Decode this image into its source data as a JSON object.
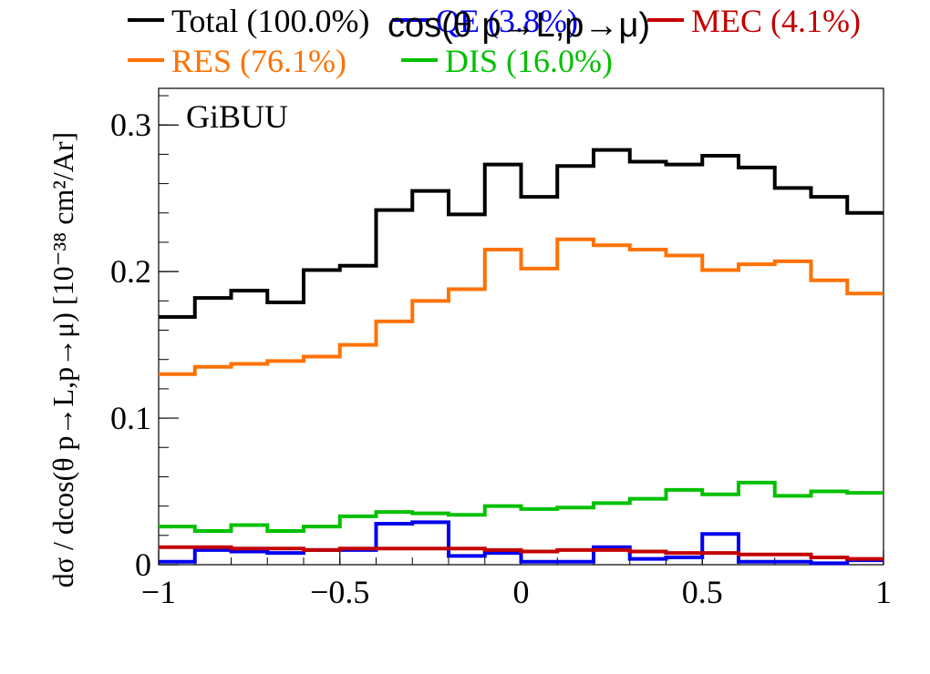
{
  "chart_data": {
    "type": "line",
    "step": true,
    "title": "cos(θ p→L,p→μ)",
    "annotation": "GiBUU",
    "xlabel": "",
    "ylabel": "dσ / dcos(θ p→L,p→μ) [10⁻³⁸ cm²/Ar]",
    "xlim": [
      -1,
      1
    ],
    "ylim": [
      0,
      0.325
    ],
    "xticks": [
      -1,
      -0.5,
      0,
      0.5,
      1
    ],
    "xtick_labels": [
      "−1",
      "−0.5",
      "0",
      "0.5",
      "1"
    ],
    "yticks": [
      0,
      0.1,
      0.2,
      0.3
    ],
    "ytick_labels": [
      "0",
      "0.1",
      "0.2",
      "0.3"
    ],
    "bin_edges": [
      -1,
      -0.9,
      -0.8,
      -0.7,
      -0.6,
      -0.5,
      -0.4,
      -0.3,
      -0.2,
      -0.1,
      0,
      0.1,
      0.2,
      0.3,
      0.4,
      0.5,
      0.6,
      0.7,
      0.8,
      0.9,
      1.0
    ],
    "legend_position": "top",
    "series": [
      {
        "name": "Total",
        "label": "Total (100.0%)",
        "color": "#000000",
        "values": [
          0.169,
          0.182,
          0.187,
          0.179,
          0.201,
          0.204,
          0.242,
          0.255,
          0.239,
          0.273,
          0.251,
          0.272,
          0.283,
          0.275,
          0.273,
          0.279,
          0.271,
          0.257,
          0.251,
          0.24
        ]
      },
      {
        "name": "QE",
        "label": "QE (3.8%)",
        "color": "#0000ee",
        "values": [
          0.002,
          0.01,
          0.009,
          0.008,
          0.01,
          0.01,
          0.028,
          0.029,
          0.006,
          0.008,
          0.002,
          0.002,
          0.012,
          0.004,
          0.005,
          0.021,
          0.002,
          0.002,
          0.001,
          0.003
        ]
      },
      {
        "name": "MEC",
        "label": "MEC (4.1%)",
        "color": "#c40000",
        "values": [
          0.012,
          0.012,
          0.011,
          0.011,
          0.01,
          0.011,
          0.011,
          0.011,
          0.011,
          0.01,
          0.009,
          0.01,
          0.01,
          0.009,
          0.008,
          0.008,
          0.007,
          0.007,
          0.005,
          0.004
        ]
      },
      {
        "name": "RES",
        "label": "RES (76.1%)",
        "color": "#ff7200",
        "values": [
          0.13,
          0.135,
          0.137,
          0.139,
          0.142,
          0.15,
          0.166,
          0.18,
          0.188,
          0.215,
          0.202,
          0.222,
          0.218,
          0.215,
          0.211,
          0.201,
          0.205,
          0.207,
          0.194,
          0.185
        ]
      },
      {
        "name": "DIS",
        "label": "DIS (16.0%)",
        "color": "#00c000",
        "values": [
          0.026,
          0.023,
          0.027,
          0.023,
          0.026,
          0.033,
          0.036,
          0.035,
          0.034,
          0.04,
          0.038,
          0.039,
          0.042,
          0.045,
          0.051,
          0.048,
          0.056,
          0.047,
          0.05,
          0.049
        ]
      }
    ]
  }
}
